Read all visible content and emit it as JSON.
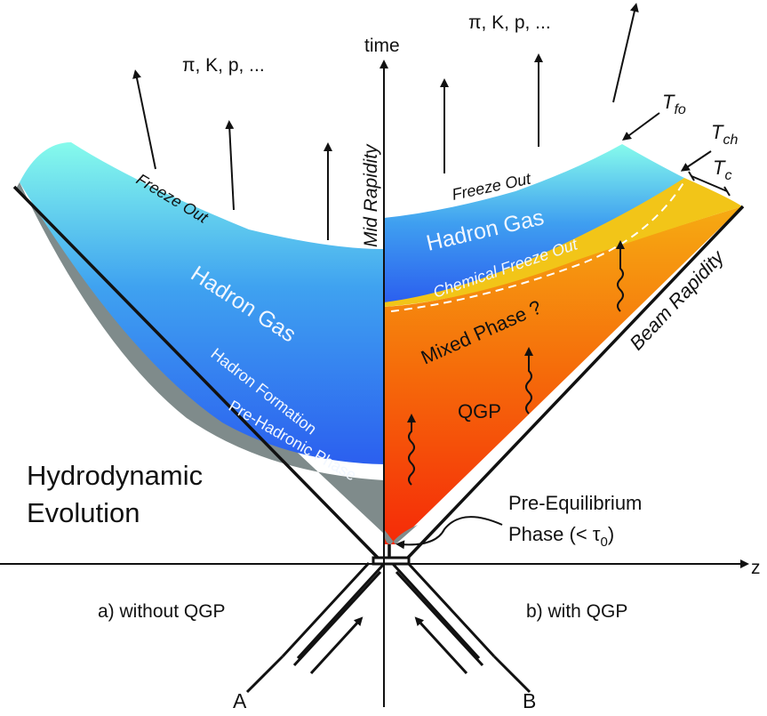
{
  "colors": {
    "hadron_gas_top": "#7ff7ec",
    "hadron_gas_bottom": "#2f6ff0",
    "pre_hadronic": "#7d8a8a",
    "mixed_phase": "#f2c515",
    "qgp_light": "#f59a10",
    "qgp_deep": "#f52808",
    "line": "#111111"
  },
  "labels": {
    "particles_left": "π, K, p, ...",
    "particles_right": "π, K, p, ...",
    "time_axis": "time",
    "z_axis": "z",
    "mid_rapidity": "Mid Rapidity",
    "beam_rapidity": "Beam Rapidity",
    "freeze_out_left": "Freeze Out",
    "freeze_out_right": "Freeze Out",
    "hadron_gas_left": "Hadron Gas",
    "hadron_gas_right": "Hadron Gas",
    "hadron_formation": "Hadron Formation",
    "pre_hadronic_phase": "Pre-Hadronic Phase",
    "chemical_freeze_out": "Chemical Freeze Out",
    "mixed_phase": "Mixed Phase ?",
    "qgp": "QGP",
    "hydro_line1": "Hydrodynamic",
    "hydro_line2": "Evolution",
    "pre_equilibrium_line1": "Pre-Equilibrium",
    "pre_equilibrium_line2": "Phase (< τ",
    "tau_subscript": "0",
    "pre_equilibrium_close": ")",
    "without_qgp": "a) without QGP",
    "with_qgp": "b) with QGP",
    "nucleus_a": "A",
    "nucleus_b": "B",
    "t_fo": "T",
    "t_fo_sub": "fo",
    "t_ch": "T",
    "t_ch_sub": "ch",
    "t_c": "T",
    "t_c_sub": "c"
  }
}
